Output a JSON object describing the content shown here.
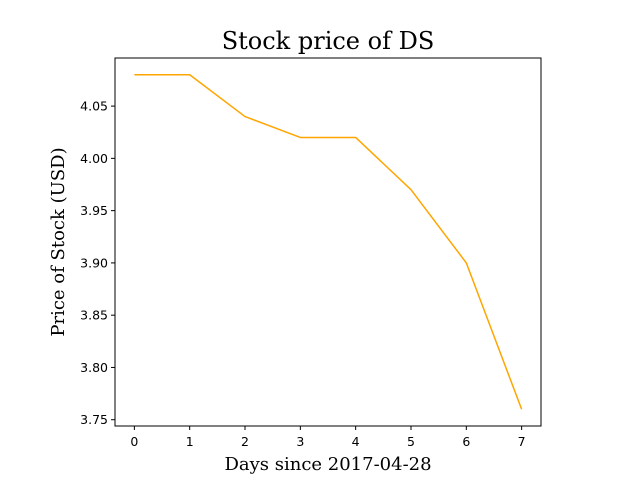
{
  "chart_data": {
    "type": "line",
    "title": "Stock price of DS",
    "xlabel": "Days since 2017-04-28",
    "ylabel": "Price of Stock (USD)",
    "x": [
      0,
      1,
      2,
      3,
      4,
      5,
      6,
      7
    ],
    "series": [
      {
        "values": [
          4.08,
          4.08,
          4.04,
          4.02,
          4.02,
          3.97,
          3.9,
          3.76
        ],
        "color": "#ffa500"
      }
    ],
    "xlim": [
      -0.35,
      7.35
    ],
    "ylim": [
      3.744,
      4.096
    ],
    "xticks": [
      0,
      1,
      2,
      3,
      4,
      5,
      6,
      7
    ],
    "xtick_labels": [
      "0",
      "1",
      "2",
      "3",
      "4",
      "5",
      "6",
      "7"
    ],
    "yticks": [
      3.75,
      3.8,
      3.85,
      3.9,
      3.95,
      4.0,
      4.05
    ],
    "ytick_labels": [
      "3.75",
      "3.80",
      "3.85",
      "3.90",
      "3.95",
      "4.00",
      "4.05"
    ],
    "grid": false,
    "legend": false
  }
}
